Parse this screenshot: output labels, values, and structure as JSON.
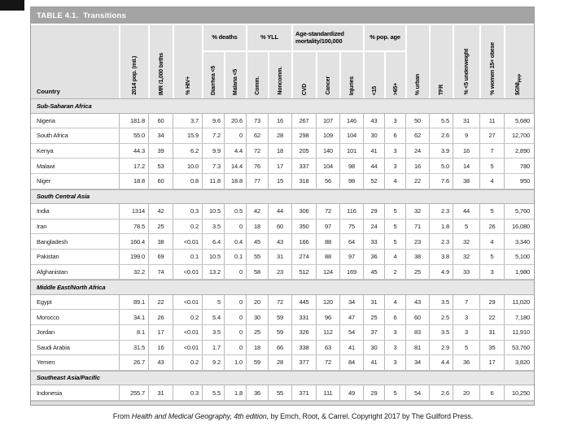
{
  "table": {
    "title": "TABLE 4.1.  Transitions",
    "columns": [
      {
        "id": "country",
        "label": "Country",
        "group": ""
      },
      {
        "id": "pop",
        "label": "2014 pop. (mil.)",
        "group": ""
      },
      {
        "id": "imr",
        "label": "IMR /1,000 births",
        "group": ""
      },
      {
        "id": "hiv",
        "label": "% HIV+",
        "group": ""
      },
      {
        "id": "diarrhea",
        "label": "Diarrhea <5",
        "group": "% deaths"
      },
      {
        "id": "malaria",
        "label": "Malaria <5",
        "group": "% deaths"
      },
      {
        "id": "comm",
        "label": "Comm.",
        "group": "% YLL"
      },
      {
        "id": "noncomm",
        "label": "Noncomm.",
        "group": "% YLL"
      },
      {
        "id": "cvd",
        "label": "CVD",
        "group": "Age-standardized mortality/100,000"
      },
      {
        "id": "cancer",
        "label": "Cancer",
        "group": "Age-standardized mortality/100,000"
      },
      {
        "id": "injuries",
        "label": "Injuries",
        "group": "Age-standardized mortality/100,000"
      },
      {
        "id": "under15",
        "label": "<15",
        "group": "% pop. age"
      },
      {
        "id": "over65",
        "label": ">65+",
        "group": "% pop. age"
      },
      {
        "id": "urban",
        "label": "% urban",
        "group": ""
      },
      {
        "id": "tfr",
        "label": "TFR",
        "group": ""
      },
      {
        "id": "underweight",
        "label": "% <5 underweight",
        "group": ""
      },
      {
        "id": "obese",
        "label": "% women 15+ obese",
        "group": ""
      },
      {
        "id": "gni",
        "label": "$GNI",
        "sub": "PPP",
        "group": ""
      }
    ],
    "sections": [
      {
        "name": "Sub-Saharan Africa",
        "rows": [
          {
            "country": "Nigeria",
            "values": [
              "181.8",
              "60",
              "3.7",
              "9.6",
              "20.6",
              "73",
              "16",
              "267",
              "107",
              "146",
              "43",
              "3",
              "50",
              "5.5",
              "31",
              "11",
              "5,680"
            ]
          },
          {
            "country": "South Africa",
            "values": [
              "55.0",
              "34",
              "15.9",
              "7.2",
              "0",
              "62",
              "28",
              "298",
              "109",
              "104",
              "30",
              "6",
              "62",
              "2.6",
              "9",
              "27",
              "12,700"
            ]
          },
          {
            "country": "Kenya",
            "values": [
              "44.3",
              "39",
              "6.2",
              "9.9",
              "4.4",
              "72",
              "18",
              "205",
              "140",
              "101",
              "41",
              "3",
              "24",
              "3.9",
              "16",
              "7",
              "2,890"
            ]
          },
          {
            "country": "Malawi",
            "values": [
              "17.2",
              "53",
              "10.0",
              "7.3",
              "14.4",
              "76",
              "17",
              "337",
              "104",
              "98",
              "44",
              "3",
              "16",
              "5.0",
              "14",
              "5",
              "780"
            ]
          },
          {
            "country": "Niger",
            "values": [
              "18.8",
              "60",
              "0.8",
              "11.8",
              "18.8",
              "77",
              "15",
              "318",
              "56",
              "98",
              "52",
              "4",
              "22",
              "7.6",
              "38",
              "4",
              "950"
            ]
          }
        ]
      },
      {
        "name": "South Central Asia",
        "rows": [
          {
            "country": "India",
            "values": [
              "1314",
              "42",
              "0.3",
              "10.5",
              "0.5",
              "42",
              "44",
              "306",
              "72",
              "116",
              "29",
              "5",
              "32",
              "2.3",
              "44",
              "5",
              "5,760"
            ]
          },
          {
            "country": "Iran",
            "values": [
              "78.5",
              "25",
              "0.2",
              "3.5",
              "0",
              "18",
              "60",
              "350",
              "97",
              "75",
              "24",
              "5",
              "71",
              "1.8",
              "5",
              "26",
              "16,080"
            ]
          },
          {
            "country": "Bangladesh",
            "values": [
              "160.4",
              "38",
              "<0.01",
              "6.4",
              "0.4",
              "45",
              "43",
              "166",
              "88",
              "64",
              "33",
              "5",
              "23",
              "2.3",
              "32",
              "4",
              "3,340"
            ]
          },
          {
            "country": "Pakistan",
            "values": [
              "199.0",
              "69",
              "0.1",
              "10.5",
              "0.1",
              "55",
              "31",
              "274",
              "88",
              "97",
              "36",
              "4",
              "38",
              "3.8",
              "32",
              "5",
              "5,100"
            ]
          },
          {
            "country": "Afghanistan",
            "values": [
              "32.2",
              "74",
              "<0.01",
              "13.2",
              "0",
              "58",
              "23",
              "512",
              "124",
              "169",
              "45",
              "2",
              "25",
              "4.9",
              "33",
              "3",
              "1,980"
            ]
          }
        ]
      },
      {
        "name": "Middle East/North Africa",
        "rows": [
          {
            "country": "Egypt",
            "values": [
              "89.1",
              "22",
              "<0.01",
              "5",
              "0",
              "20",
              "72",
              "445",
              "120",
              "34",
              "31",
              "4",
              "43",
              "3.5",
              "7",
              "29",
              "11,020"
            ]
          },
          {
            "country": "Morocco",
            "values": [
              "34.1",
              "26",
              "0.2",
              "5.4",
              "0",
              "30",
              "59",
              "331",
              "96",
              "47",
              "25",
              "6",
              "60",
              "2.5",
              "3",
              "22",
              "7,180"
            ]
          },
          {
            "country": "Jordan",
            "values": [
              "8.1",
              "17",
              "<0.01",
              "3.5",
              "0",
              "25",
              "59",
              "326",
              "112",
              "54",
              "37",
              "3",
              "83",
              "3.5",
              "3",
              "31",
              "11,910"
            ]
          },
          {
            "country": "Saudi Arabia",
            "values": [
              "31.5",
              "16",
              "<0.01",
              "1.7",
              "0",
              "18",
              "66",
              "338",
              "63",
              "41",
              "30",
              "3",
              "81",
              "2.9",
              "5",
              "35",
              "53,760"
            ]
          },
          {
            "country": "Yemen",
            "values": [
              "26.7",
              "43",
              "0.2",
              "9.2",
              "1.0",
              "59",
              "28",
              "377",
              "72",
              "84",
              "41",
              "3",
              "34",
              "4.4",
              "36",
              "17",
              "3,820"
            ]
          }
        ]
      },
      {
        "name": "Southeast Asia/Pacific",
        "rows": [
          {
            "country": "Indonesia",
            "values": [
              "255.7",
              "31",
              "0.3",
              "5.5",
              "1.8",
              "36",
              "55",
              "371",
              "111",
              "49",
              "29",
              "5",
              "54",
              "2.6",
              "20",
              "6",
              "10,250"
            ]
          }
        ]
      }
    ]
  },
  "caption": {
    "prefix": "From ",
    "italic": "Health and Medical Geography, 4th edition,",
    "suffix": " by Emch, Root, & Carrel. Copyright 2017 by The Guilford Press."
  },
  "colors": {
    "title_bar": "#a4a4a4",
    "header_cell": "#e2e2e2",
    "section_row": "#e7e7e7",
    "grid_line": "#b8b8b8"
  }
}
